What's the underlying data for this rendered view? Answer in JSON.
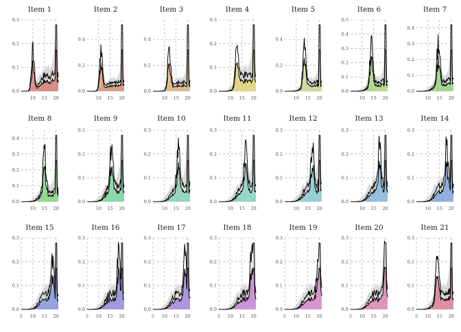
{
  "chart_data": {
    "type": "area",
    "x_domain": [
      5,
      21
    ],
    "items": [
      {
        "title": "Item 1",
        "color": "#d9716b",
        "ylim": [
          0,
          0.3
        ],
        "yticks": [
          0.0,
          0.1,
          0.2,
          0.3
        ],
        "xticks": [
          10,
          15,
          20
        ],
        "peak": 10.0
      },
      {
        "title": "Item 2",
        "color": "#d68a6e",
        "ylim": [
          0,
          0.55
        ],
        "yticks": [
          0.0,
          0.2,
          0.4
        ],
        "xticks": [
          10,
          15,
          20
        ],
        "peak": 11.0
      },
      {
        "title": "Item 3",
        "color": "#dfae74",
        "ylim": [
          0,
          0.55
        ],
        "yticks": [
          0.0,
          0.2,
          0.4
        ],
        "xticks": [
          10,
          15,
          20
        ],
        "peak": 12.0
      },
      {
        "title": "Item 4",
        "color": "#e3d46a",
        "ylim": [
          0,
          0.3
        ],
        "yticks": [
          0.0,
          0.1,
          0.2,
          0.3
        ],
        "xticks": [
          10,
          15,
          20
        ],
        "peak": 12.8
      },
      {
        "title": "Item 5",
        "color": "#c6d88a",
        "ylim": [
          0,
          0.55
        ],
        "yticks": [
          0.0,
          0.2,
          0.4
        ],
        "xticks": [
          10,
          15,
          20
        ],
        "peak": 13.5
      },
      {
        "title": "Item 6",
        "color": "#a6d876",
        "ylim": [
          0,
          0.5
        ],
        "yticks": [
          0.0,
          0.1,
          0.2,
          0.3,
          0.4,
          0.5
        ],
        "xticks": [
          10,
          15,
          20
        ],
        "peak": 14.0
      },
      {
        "title": "Item 7",
        "color": "#8fd47a",
        "ylim": [
          0,
          0.45
        ],
        "yticks": [
          0.0,
          0.1,
          0.2,
          0.3,
          0.4
        ],
        "xticks": [
          10,
          15,
          20
        ],
        "peak": 14.5
      },
      {
        "title": "Item 8",
        "color": "#79d87a",
        "ylim": [
          0,
          0.45
        ],
        "yticks": [
          0.0,
          0.1,
          0.2,
          0.3,
          0.4
        ],
        "xticks": [
          10,
          15,
          20
        ],
        "peak": 15.0
      },
      {
        "title": "Item 9",
        "color": "#6ed897",
        "ylim": [
          0,
          0.3
        ],
        "yticks": [
          0.0,
          0.1,
          0.2,
          0.3
        ],
        "xticks": [
          10,
          15,
          20
        ],
        "peak": 15.5
      },
      {
        "title": "Item 10",
        "color": "#7cd4ac",
        "ylim": [
          0,
          0.3
        ],
        "yticks": [
          0.0,
          0.1,
          0.2,
          0.3
        ],
        "xticks": [
          10,
          15,
          20
        ],
        "peak": 16.0
      },
      {
        "title": "Item 11",
        "color": "#7fd3c4",
        "ylim": [
          0,
          0.3
        ],
        "yticks": [
          0.0,
          0.1,
          0.2,
          0.3
        ],
        "xticks": [
          10,
          15,
          20
        ],
        "peak": 16.5
      },
      {
        "title": "Item 12",
        "color": "#84cbd6",
        "ylim": [
          0,
          0.3
        ],
        "yticks": [
          0.0,
          0.1,
          0.2,
          0.3
        ],
        "xticks": [
          10,
          15,
          20
        ],
        "peak": 17.0
      },
      {
        "title": "Item 13",
        "color": "#7cb6e0",
        "ylim": [
          0,
          0.3
        ],
        "yticks": [
          0.0,
          0.1,
          0.2,
          0.3
        ],
        "xticks": [
          10,
          15,
          20
        ],
        "peak": 17.5
      },
      {
        "title": "Item 14",
        "color": "#7a9fe0",
        "ylim": [
          0,
          0.3
        ],
        "yticks": [
          0.0,
          0.1,
          0.2,
          0.3
        ],
        "xticks": [
          10,
          15,
          20
        ],
        "peak": 18.0
      },
      {
        "title": "Item 15",
        "color": "#7b8ee0",
        "ylim": [
          0,
          0.3
        ],
        "yticks": [
          0.0,
          0.1,
          0.2,
          0.3
        ],
        "xticks": [
          5,
          10,
          15,
          20
        ],
        "peak": 18.3
      },
      {
        "title": "Item 16",
        "color": "#8a86df",
        "ylim": [
          0,
          0.3
        ],
        "yticks": [
          0.0,
          0.1,
          0.2,
          0.3
        ],
        "xticks": [
          5,
          10,
          15,
          20
        ],
        "peak": 18.6
      },
      {
        "title": "Item 17",
        "color": "#a07fdc",
        "ylim": [
          0,
          0.3
        ],
        "yticks": [
          0.0,
          0.1,
          0.2,
          0.3
        ],
        "xticks": [
          5,
          10,
          15,
          20
        ],
        "peak": 18.9
      },
      {
        "title": "Item 18",
        "color": "#c27ed8",
        "ylim": [
          0,
          0.3
        ],
        "yticks": [
          0.0,
          0.1,
          0.2,
          0.3
        ],
        "xticks": [
          5,
          10,
          15,
          20
        ],
        "peak": 19.2
      },
      {
        "title": "Item 19",
        "color": "#d77ec9",
        "ylim": [
          0,
          0.3
        ],
        "yticks": [
          0.0,
          0.1,
          0.2,
          0.3
        ],
        "xticks": [
          5,
          10,
          15,
          20
        ],
        "peak": 19.5
      },
      {
        "title": "Item 20",
        "color": "#df7fb4",
        "ylim": [
          0,
          0.3
        ],
        "yticks": [
          0.0,
          0.1,
          0.2,
          0.3
        ],
        "xticks": [
          5,
          10,
          15,
          20
        ],
        "peak": 19.8
      },
      {
        "title": "Item 21",
        "color": "#e0758d",
        "ylim": [
          0,
          0.3
        ],
        "yticks": [
          0.0,
          0.1,
          0.2,
          0.3
        ],
        "xticks": [
          5,
          10,
          15,
          20
        ],
        "peak": 14.0
      }
    ],
    "grey_series": {
      "color": "#d9d9d9",
      "x": [
        5,
        6,
        7,
        8,
        8.5,
        9,
        9.5,
        10,
        10.5,
        11,
        11.5,
        12,
        12.3,
        12.6,
        12.9,
        13.2,
        13.5,
        13.8,
        14.1,
        14.4,
        14.7,
        15,
        15.3,
        15.6,
        15.9,
        16.2,
        16.5,
        16.8,
        17.1,
        17.4,
        17.7,
        18,
        18.3,
        18.6,
        18.9,
        19.2,
        19.5,
        19.8,
        20.1,
        20.4,
        20.7,
        21
      ],
      "y": [
        0.0,
        0.0,
        0.002,
        0.004,
        0.006,
        0.01,
        0.015,
        0.02,
        0.026,
        0.032,
        0.04,
        0.05,
        0.058,
        0.066,
        0.074,
        0.072,
        0.066,
        0.07,
        0.08,
        0.095,
        0.09,
        0.085,
        0.1,
        0.11,
        0.102,
        0.095,
        0.108,
        0.112,
        0.1,
        0.092,
        0.1,
        0.11,
        0.118,
        0.13,
        0.145,
        0.17,
        0.21,
        0.26,
        0.29,
        0.2,
        0.13,
        0.08
      ]
    },
    "grid": true,
    "legend": "none"
  }
}
